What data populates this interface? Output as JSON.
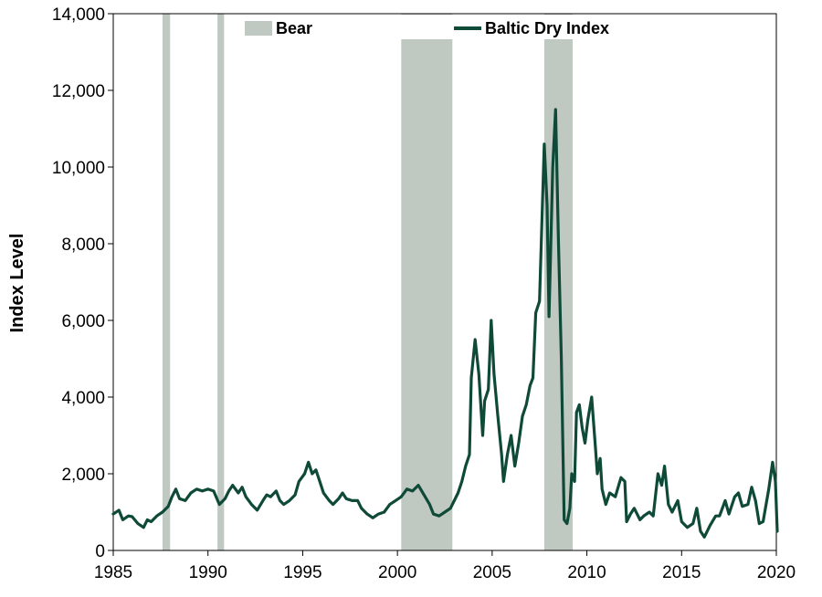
{
  "chart_data": {
    "type": "line",
    "title": "",
    "xlabel": "",
    "ylabel": "Index Level",
    "xlim": [
      1985,
      2020
    ],
    "ylim": [
      0,
      14000
    ],
    "x_ticks": [
      1985,
      1990,
      1995,
      2000,
      2005,
      2010,
      2015,
      2020
    ],
    "x_tick_labels": [
      "1985",
      "1990",
      "1995",
      "2000",
      "2005",
      "2010",
      "2015",
      "2020"
    ],
    "y_ticks": [
      0,
      2000,
      4000,
      6000,
      8000,
      10000,
      12000,
      14000
    ],
    "y_tick_labels": [
      "0",
      "2,000",
      "4,000",
      "6,000",
      "8,000",
      "10,000",
      "12,000",
      "14,000"
    ],
    "grid": false,
    "legend": {
      "placement": "top",
      "entries": [
        "Bear",
        "Baltic Dry Index"
      ]
    },
    "shaded_regions": {
      "name": "Bear",
      "color": "#bfc9c2",
      "periods": [
        {
          "start": 1987.6,
          "end": 1988.0
        },
        {
          "start": 1990.5,
          "end": 1990.85
        },
        {
          "start": 2000.2,
          "end": 2002.9
        },
        {
          "start": 2007.75,
          "end": 2009.25
        }
      ]
    },
    "series": [
      {
        "name": "Baltic Dry Index",
        "color": "#0f4a38",
        "points": [
          [
            1985.0,
            950
          ],
          [
            1985.3,
            1050
          ],
          [
            1985.5,
            800
          ],
          [
            1985.8,
            900
          ],
          [
            1986.0,
            880
          ],
          [
            1986.3,
            700
          ],
          [
            1986.6,
            600
          ],
          [
            1986.8,
            800
          ],
          [
            1987.0,
            750
          ],
          [
            1987.3,
            900
          ],
          [
            1987.6,
            1000
          ],
          [
            1987.9,
            1150
          ],
          [
            1988.1,
            1400
          ],
          [
            1988.3,
            1600
          ],
          [
            1988.5,
            1350
          ],
          [
            1988.8,
            1300
          ],
          [
            1989.1,
            1500
          ],
          [
            1989.4,
            1600
          ],
          [
            1989.7,
            1550
          ],
          [
            1990.0,
            1600
          ],
          [
            1990.3,
            1550
          ],
          [
            1990.6,
            1200
          ],
          [
            1990.9,
            1350
          ],
          [
            1991.1,
            1550
          ],
          [
            1991.3,
            1700
          ],
          [
            1991.6,
            1500
          ],
          [
            1991.8,
            1650
          ],
          [
            1992.0,
            1400
          ],
          [
            1992.3,
            1200
          ],
          [
            1992.6,
            1050
          ],
          [
            1992.9,
            1300
          ],
          [
            1993.1,
            1450
          ],
          [
            1993.3,
            1400
          ],
          [
            1993.6,
            1550
          ],
          [
            1993.8,
            1300
          ],
          [
            1994.0,
            1200
          ],
          [
            1994.3,
            1300
          ],
          [
            1994.6,
            1450
          ],
          [
            1994.8,
            1800
          ],
          [
            1995.1,
            2000
          ],
          [
            1995.3,
            2300
          ],
          [
            1995.5,
            2000
          ],
          [
            1995.7,
            2100
          ],
          [
            1995.9,
            1800
          ],
          [
            1996.1,
            1500
          ],
          [
            1996.4,
            1300
          ],
          [
            1996.6,
            1200
          ],
          [
            1996.9,
            1350
          ],
          [
            1997.1,
            1500
          ],
          [
            1997.3,
            1350
          ],
          [
            1997.6,
            1300
          ],
          [
            1997.9,
            1300
          ],
          [
            1998.1,
            1100
          ],
          [
            1998.4,
            950
          ],
          [
            1998.7,
            850
          ],
          [
            1999.0,
            950
          ],
          [
            1999.3,
            1000
          ],
          [
            1999.6,
            1200
          ],
          [
            1999.9,
            1300
          ],
          [
            2000.2,
            1400
          ],
          [
            2000.5,
            1600
          ],
          [
            2000.8,
            1550
          ],
          [
            2001.1,
            1700
          ],
          [
            2001.4,
            1450
          ],
          [
            2001.7,
            1200
          ],
          [
            2001.9,
            950
          ],
          [
            2002.2,
            900
          ],
          [
            2002.5,
            1000
          ],
          [
            2002.8,
            1100
          ],
          [
            2003.0,
            1300
          ],
          [
            2003.2,
            1500
          ],
          [
            2003.4,
            1800
          ],
          [
            2003.6,
            2200
          ],
          [
            2003.8,
            2500
          ],
          [
            2003.9,
            4500
          ],
          [
            2004.1,
            5500
          ],
          [
            2004.3,
            4600
          ],
          [
            2004.5,
            3000
          ],
          [
            2004.6,
            3900
          ],
          [
            2004.8,
            4200
          ],
          [
            2004.95,
            6000
          ],
          [
            2005.1,
            4600
          ],
          [
            2005.3,
            3500
          ],
          [
            2005.5,
            2500
          ],
          [
            2005.6,
            1800
          ],
          [
            2005.8,
            2500
          ],
          [
            2006.0,
            3000
          ],
          [
            2006.2,
            2200
          ],
          [
            2006.4,
            2800
          ],
          [
            2006.6,
            3500
          ],
          [
            2006.8,
            3800
          ],
          [
            2007.0,
            4300
          ],
          [
            2007.15,
            4500
          ],
          [
            2007.3,
            6200
          ],
          [
            2007.5,
            6500
          ],
          [
            2007.75,
            10600
          ],
          [
            2007.9,
            9000
          ],
          [
            2008.0,
            6100
          ],
          [
            2008.2,
            10000
          ],
          [
            2008.35,
            11500
          ],
          [
            2008.5,
            8000
          ],
          [
            2008.65,
            5000
          ],
          [
            2008.8,
            800
          ],
          [
            2008.95,
            700
          ],
          [
            2009.1,
            1100
          ],
          [
            2009.2,
            2000
          ],
          [
            2009.35,
            1800
          ],
          [
            2009.45,
            3600
          ],
          [
            2009.6,
            3800
          ],
          [
            2009.75,
            3200
          ],
          [
            2009.9,
            2800
          ],
          [
            2010.05,
            3400
          ],
          [
            2010.25,
            4000
          ],
          [
            2010.45,
            2700
          ],
          [
            2010.55,
            2000
          ],
          [
            2010.7,
            2400
          ],
          [
            2010.8,
            1600
          ],
          [
            2011.0,
            1200
          ],
          [
            2011.2,
            1500
          ],
          [
            2011.5,
            1400
          ],
          [
            2011.8,
            1900
          ],
          [
            2012.0,
            1800
          ],
          [
            2012.1,
            750
          ],
          [
            2012.3,
            950
          ],
          [
            2012.5,
            1100
          ],
          [
            2012.8,
            800
          ],
          [
            2013.0,
            900
          ],
          [
            2013.3,
            1000
          ],
          [
            2013.5,
            900
          ],
          [
            2013.75,
            2000
          ],
          [
            2013.95,
            1700
          ],
          [
            2014.1,
            2200
          ],
          [
            2014.3,
            1200
          ],
          [
            2014.5,
            1000
          ],
          [
            2014.8,
            1300
          ],
          [
            2015.0,
            750
          ],
          [
            2015.3,
            600
          ],
          [
            2015.6,
            700
          ],
          [
            2015.8,
            1100
          ],
          [
            2016.0,
            500
          ],
          [
            2016.2,
            350
          ],
          [
            2016.5,
            650
          ],
          [
            2016.8,
            900
          ],
          [
            2017.0,
            900
          ],
          [
            2017.3,
            1300
          ],
          [
            2017.5,
            950
          ],
          [
            2017.8,
            1400
          ],
          [
            2018.0,
            1500
          ],
          [
            2018.2,
            1150
          ],
          [
            2018.5,
            1200
          ],
          [
            2018.7,
            1650
          ],
          [
            2018.9,
            1300
          ],
          [
            2019.1,
            700
          ],
          [
            2019.3,
            750
          ],
          [
            2019.6,
            1600
          ],
          [
            2019.8,
            2300
          ],
          [
            2019.95,
            1800
          ],
          [
            2020.05,
            500
          ]
        ]
      }
    ]
  }
}
